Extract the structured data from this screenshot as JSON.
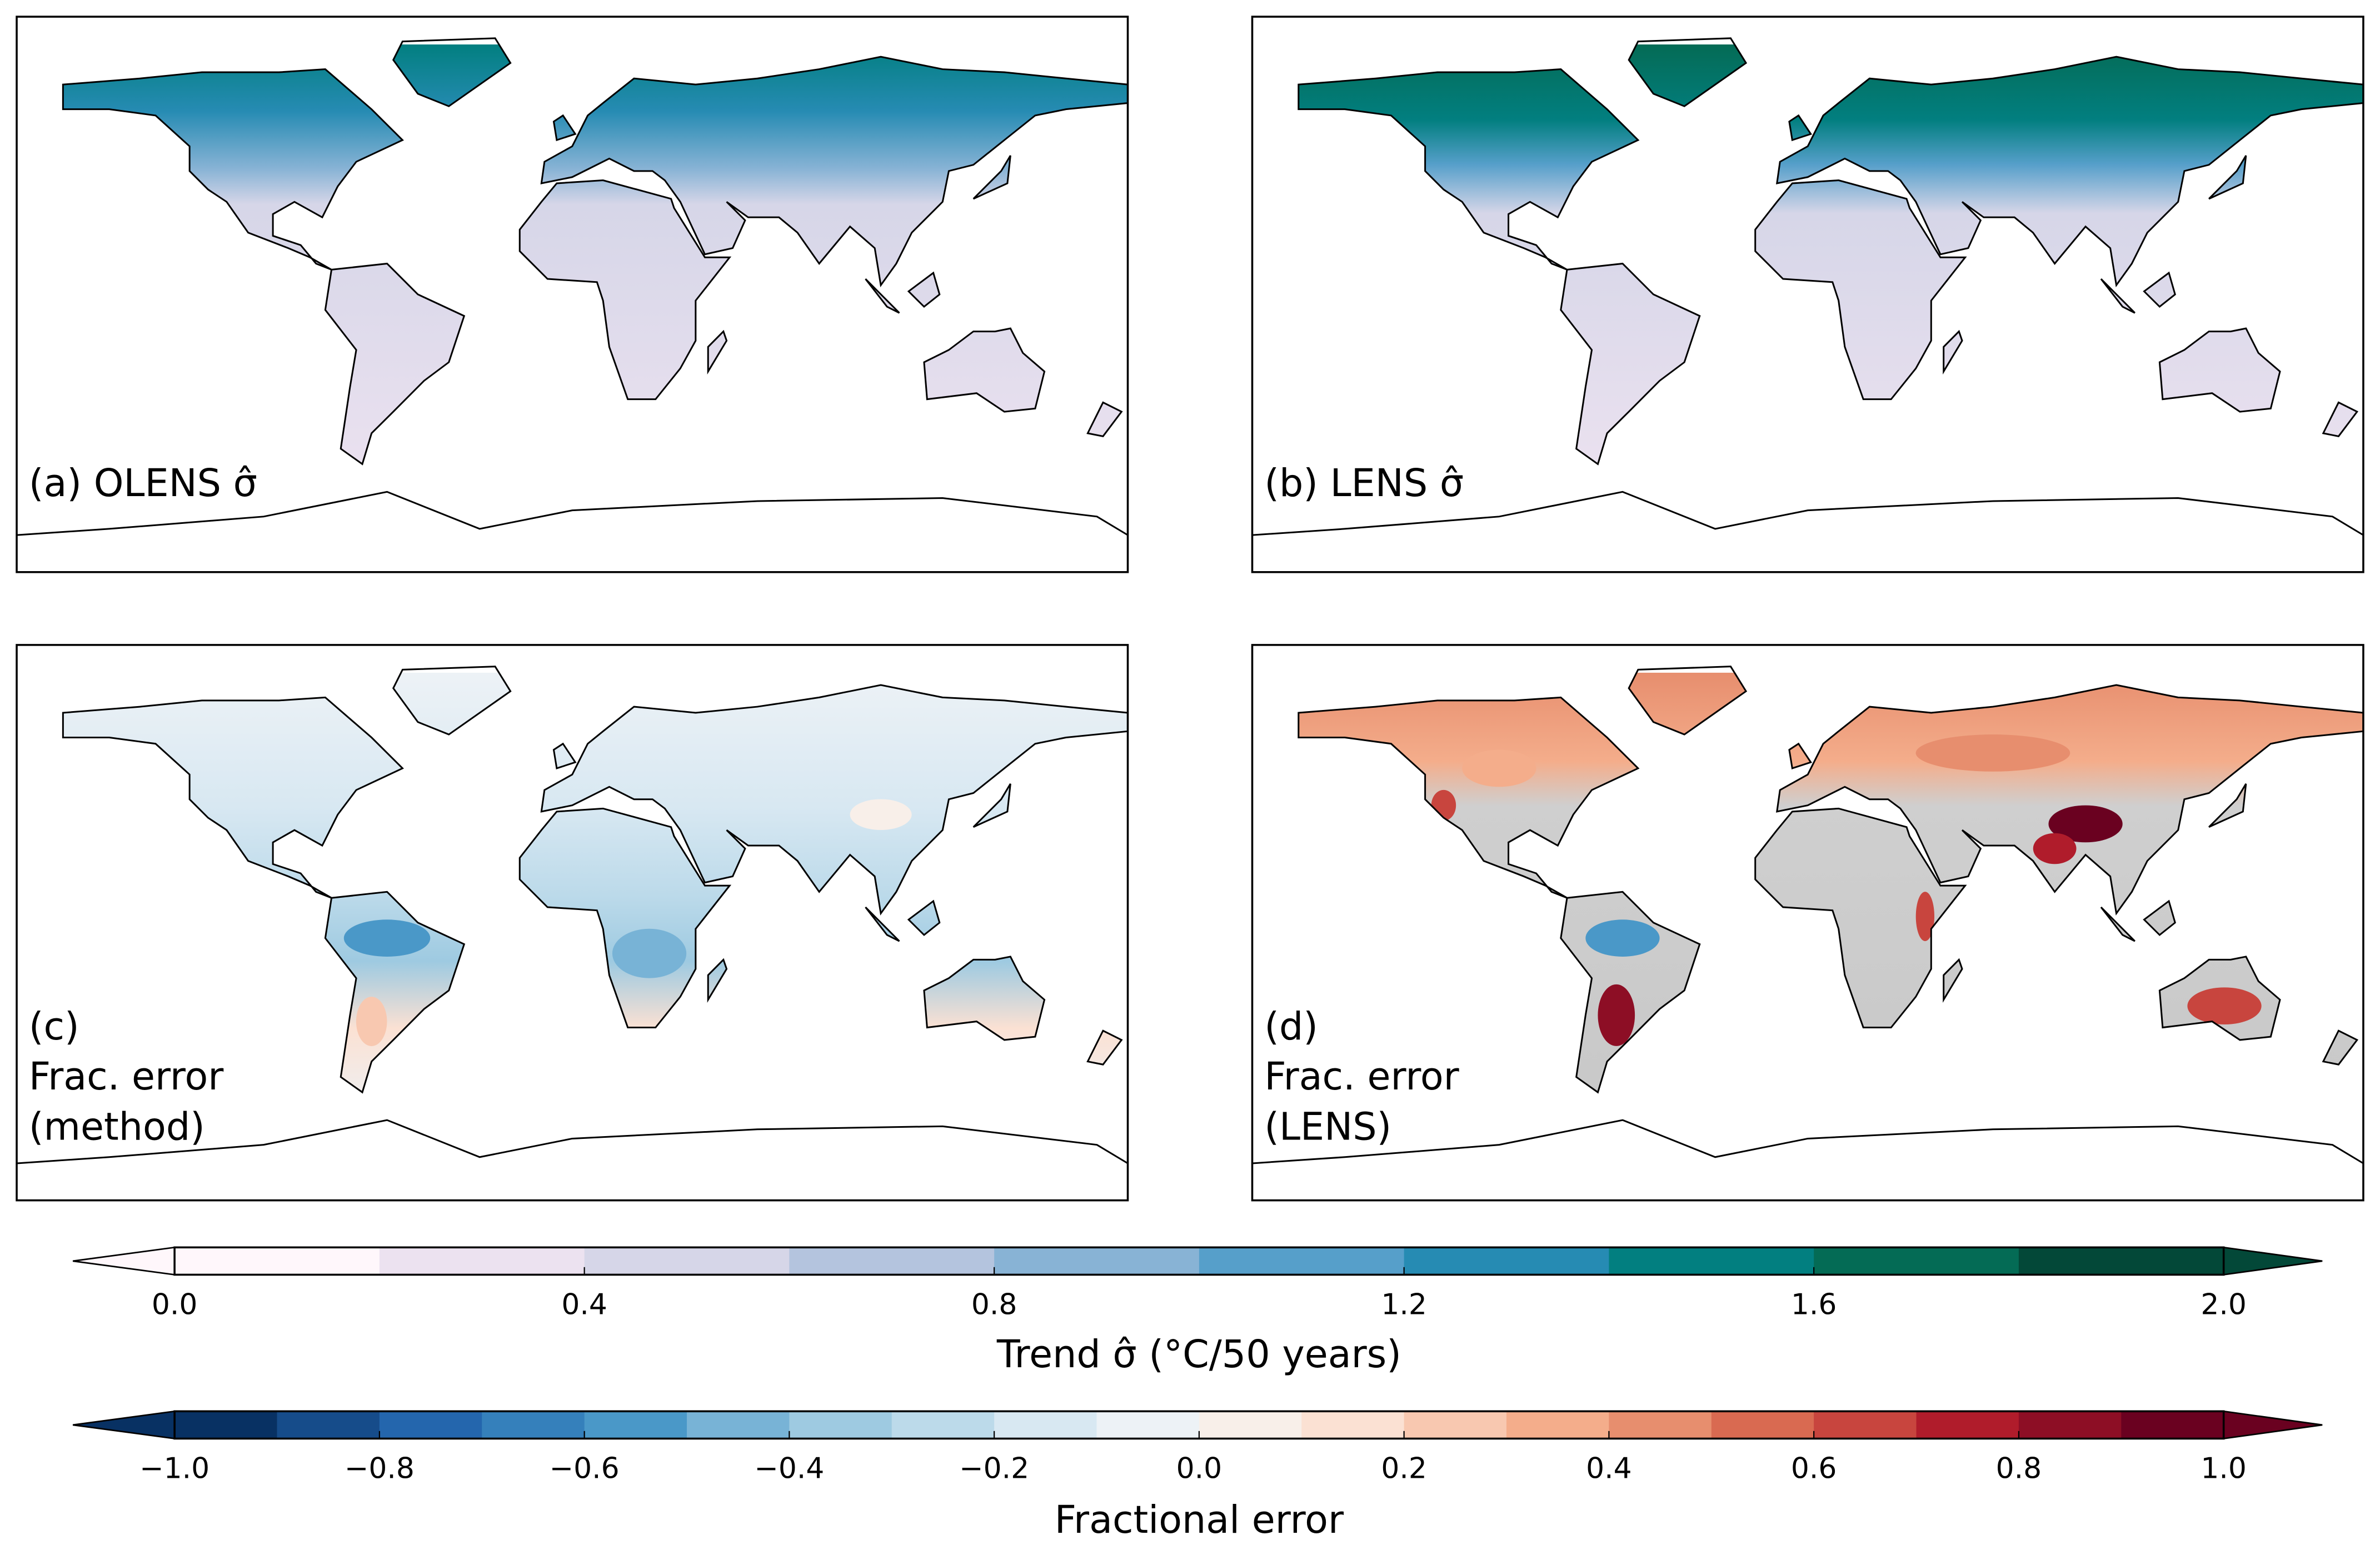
{
  "panels": [
    {
      "id": "a",
      "label_lines": [
        "(a) OLENS σ̂"
      ],
      "field": "trend_sigma_olens"
    },
    {
      "id": "b",
      "label_lines": [
        "(b) LENS σ̂"
      ],
      "field": "trend_sigma_lens"
    },
    {
      "id": "c",
      "label_lines": [
        "(c)",
        "Frac. error",
        "(method)"
      ],
      "field": "frac_error_method"
    },
    {
      "id": "d",
      "label_lines": [
        "(d)",
        "Frac. error",
        "(LENS)"
      ],
      "field": "frac_error_lens",
      "stippled_grey_regions": true
    }
  ],
  "chart_data": [
    {
      "type": "heatmap",
      "colorbar": "trend",
      "title": "Trend σ̂ (°C/50 years)",
      "range": [
        0.0,
        2.0
      ],
      "extend": "both",
      "ticks": [
        "0.0",
        "0.4",
        "0.8",
        "1.2",
        "1.6",
        "2.0"
      ],
      "levels": [
        0.0,
        0.2,
        0.4,
        0.6,
        0.8,
        1.0,
        1.2,
        1.4,
        1.6,
        1.8,
        2.0
      ],
      "colors": [
        "#fff7fb",
        "#ece2f0",
        "#d6d6e8",
        "#b4c4de",
        "#88b3d5",
        "#569fca",
        "#268bb3",
        "#027f80",
        "#046b55",
        "#034838"
      ]
    },
    {
      "type": "heatmap",
      "colorbar": "fractional_error",
      "title": "Fractional error",
      "range": [
        -1.0,
        1.0
      ],
      "extend": "both",
      "ticks": [
        "−1.0",
        "−0.8",
        "−0.6",
        "−0.4",
        "−0.2",
        "0.0",
        "0.2",
        "0.4",
        "0.6",
        "0.8",
        "1.0"
      ],
      "colors": [
        "#083163",
        "#164c8a",
        "#2466ad",
        "#3580bb",
        "#4a98c8",
        "#78b3d6",
        "#9ecae1",
        "#bcdaea",
        "#d8e8f2",
        "#edf2f6",
        "#f8efe9",
        "#fbe1d3",
        "#f8c8b0",
        "#f4ad8b",
        "#e78e6e",
        "#d96a51",
        "#c8453e",
        "#b01c2b",
        "#8d0e25",
        "#6a0120"
      ]
    }
  ]
}
